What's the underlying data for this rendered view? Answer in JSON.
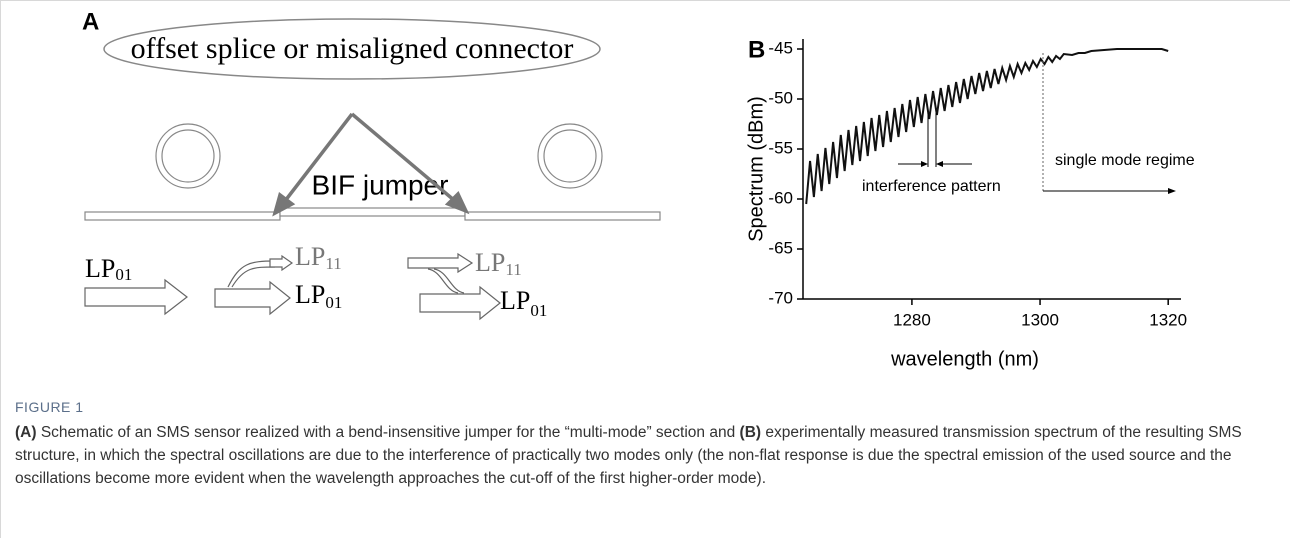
{
  "figure_a": {
    "label": "A",
    "callout": "offset splice or misaligned connector",
    "jumper": "BIF jumper",
    "modes": [
      {
        "name": "LP",
        "sub": "01"
      },
      {
        "name": "LP",
        "sub": "11"
      },
      {
        "name": "LP",
        "sub": "01"
      },
      {
        "name": "LP",
        "sub": "11"
      },
      {
        "name": "LP",
        "sub": "01"
      }
    ]
  },
  "chart_data": {
    "type": "line",
    "panel": "B",
    "x_label": "wavelength (nm)",
    "y_label": "Spectrum (dBm)",
    "color": "#111111",
    "xlim": [
      1263,
      1322
    ],
    "ylim": [
      -70,
      -44
    ],
    "xticks": [
      1280,
      1300,
      1320
    ],
    "yticks": [
      -70,
      -65,
      -60,
      -55,
      -50,
      -45
    ],
    "annotations": [
      "interference pattern",
      "single mode regime"
    ],
    "x": [
      1263.5,
      1264.1,
      1264.7,
      1265.3,
      1265.9,
      1266.5,
      1267.1,
      1267.7,
      1268.3,
      1268.9,
      1269.5,
      1270.1,
      1270.7,
      1271.3,
      1271.9,
      1272.5,
      1273.1,
      1273.7,
      1274.3,
      1274.9,
      1275.5,
      1276.1,
      1276.7,
      1277.3,
      1277.9,
      1278.5,
      1279.1,
      1279.7,
      1280.3,
      1280.9,
      1281.5,
      1282.1,
      1282.7,
      1283.3,
      1283.9,
      1284.5,
      1285.1,
      1285.7,
      1286.3,
      1286.9,
      1287.5,
      1288.1,
      1288.7,
      1289.3,
      1289.9,
      1290.5,
      1291.1,
      1291.7,
      1292.3,
      1292.9,
      1293.5,
      1294.1,
      1294.7,
      1295.3,
      1295.9,
      1296.5,
      1297.1,
      1297.7,
      1298.3,
      1298.9,
      1299.5,
      1300.1,
      1300.7,
      1301.3,
      1301.9,
      1302.5,
      1303.1,
      1303.7,
      1305,
      1306,
      1307,
      1308,
      1310,
      1312,
      1314,
      1316,
      1318,
      1319,
      1320
    ],
    "values": [
      -60.5,
      -56.2,
      -59.8,
      -55.5,
      -59.2,
      -54.9,
      -58.5,
      -54.3,
      -57.9,
      -53.6,
      -57.2,
      -53.1,
      -56.6,
      -52.7,
      -56.2,
      -52.3,
      -55.7,
      -51.9,
      -55.2,
      -51.6,
      -54.8,
      -51.2,
      -54.3,
      -50.9,
      -53.8,
      -50.5,
      -53.3,
      -50.1,
      -52.8,
      -49.8,
      -52.4,
      -49.5,
      -52.0,
      -49.2,
      -51.6,
      -48.9,
      -51.2,
      -48.6,
      -50.8,
      -48.3,
      -50.4,
      -48.0,
      -50.0,
      -47.7,
      -49.5,
      -47.4,
      -49.2,
      -47.2,
      -48.9,
      -47.0,
      -48.5,
      -46.9,
      -48.1,
      -46.7,
      -47.8,
      -46.5,
      -47.4,
      -46.4,
      -47.1,
      -46.2,
      -46.8,
      -46.0,
      -46.5,
      -45.8,
      -46.3,
      -45.7,
      -46.0,
      -45.5,
      -45.6,
      -45.4,
      -45.4,
      -45.2,
      -45.1,
      -45.0,
      -45.0,
      -45.0,
      -45.0,
      -45.0,
      -45.2
    ]
  },
  "caption": {
    "figure": "FIGURE 1",
    "parts": [
      {
        "text": "(A)",
        "bold": true
      },
      {
        "text": " Schematic of an SMS sensor realized with a bend-insensitive jumper for the “multi-mode” section and ",
        "bold": false
      },
      {
        "text": "(B)",
        "bold": true
      },
      {
        "text": " experimentally measured transmission spectrum of the resulting SMS structure, in which the spectral oscillations are due to the interference of practically two modes only (the non-flat response is due the spectral emission of the used source and the oscillations become more evident when the wavelength approaches the cut-off of the first higher-order mode).",
        "bold": false
      }
    ]
  }
}
